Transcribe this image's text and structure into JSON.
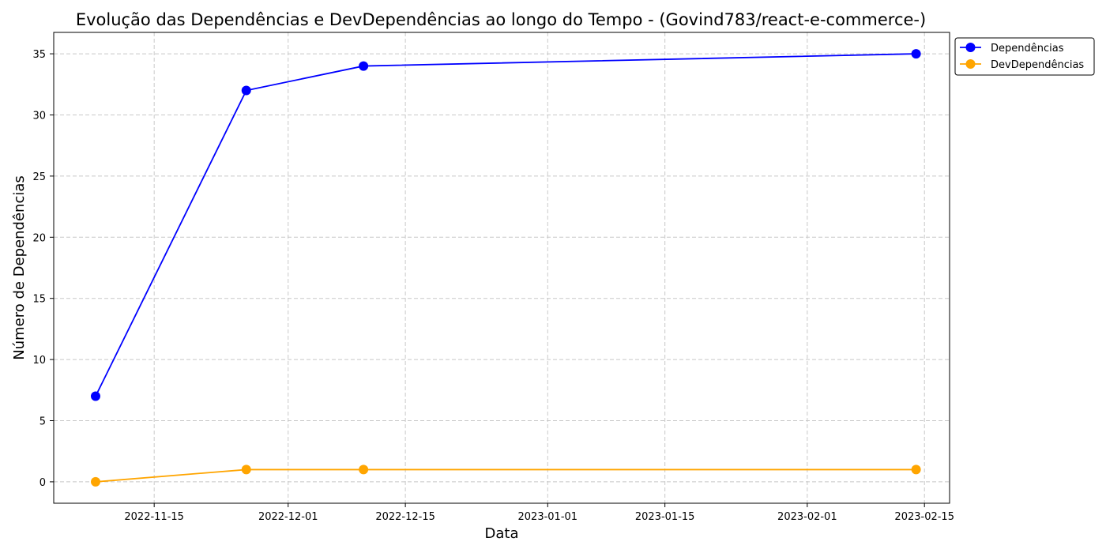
{
  "chart_data": {
    "type": "line",
    "title": "Evolução das Dependências e DevDependências ao longo do Tempo - (Govind783/react-e-commerce-)",
    "xlabel": "Data",
    "ylabel": "Número de Dependências",
    "xlim": [
      "2022-11-03",
      "2023-02-18"
    ],
    "ylim": [
      -1.75,
      36.75
    ],
    "x_ticks": [
      "2022-11-15",
      "2022-12-01",
      "2022-12-15",
      "2023-01-01",
      "2023-01-15",
      "2023-02-01",
      "2023-02-15"
    ],
    "y_ticks": [
      0,
      5,
      10,
      15,
      20,
      25,
      30,
      35
    ],
    "grid": true,
    "legend_position": "outside-top-right",
    "x": [
      "2022-11-08",
      "2022-11-26",
      "2022-12-10",
      "2023-02-14"
    ],
    "series": [
      {
        "name": "Dependências",
        "color": "#0000ff",
        "values": [
          7,
          32,
          34,
          35
        ]
      },
      {
        "name": "DevDependências",
        "color": "#ffa500",
        "values": [
          0,
          1,
          1,
          1
        ]
      }
    ]
  }
}
